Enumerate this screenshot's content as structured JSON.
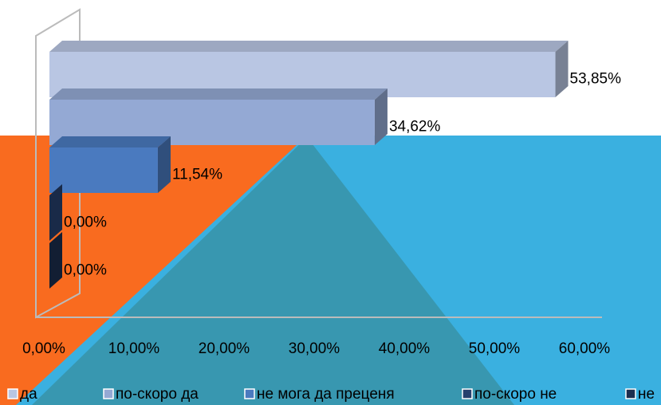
{
  "chart_data": {
    "type": "bar",
    "orientation": "horizontal",
    "series": [
      {
        "name": "да",
        "color": "#b9c6e3",
        "values": [
          53.85
        ],
        "value_labels": [
          "53,85%"
        ]
      },
      {
        "name": "по-скоро да",
        "color": "#94a9d4",
        "values": [
          34.62
        ],
        "value_labels": [
          "34,62%"
        ]
      },
      {
        "name": "не мога да преценя",
        "color": "#4a7abf",
        "values": [
          11.54
        ],
        "value_labels": [
          "11,54%"
        ]
      },
      {
        "name": "по-скоро не",
        "color": "#27406e",
        "values": [
          0
        ],
        "value_labels": [
          "0,00%"
        ]
      },
      {
        "name": "не",
        "color": "#1c2e4f",
        "values": [
          0
        ],
        "value_labels": [
          "0,00%"
        ]
      }
    ],
    "xlim": [
      0,
      60
    ],
    "xticks": [
      {
        "value": 0,
        "label": "0,00%"
      },
      {
        "value": 10,
        "label": "10,00%"
      },
      {
        "value": 20,
        "label": "20,00%"
      },
      {
        "value": 30,
        "label": "30,00%"
      },
      {
        "value": 40,
        "label": "40,00%"
      },
      {
        "value": 50,
        "label": "50,00%"
      },
      {
        "value": 60,
        "label": "60,00%"
      }
    ],
    "legend": "bottom"
  }
}
